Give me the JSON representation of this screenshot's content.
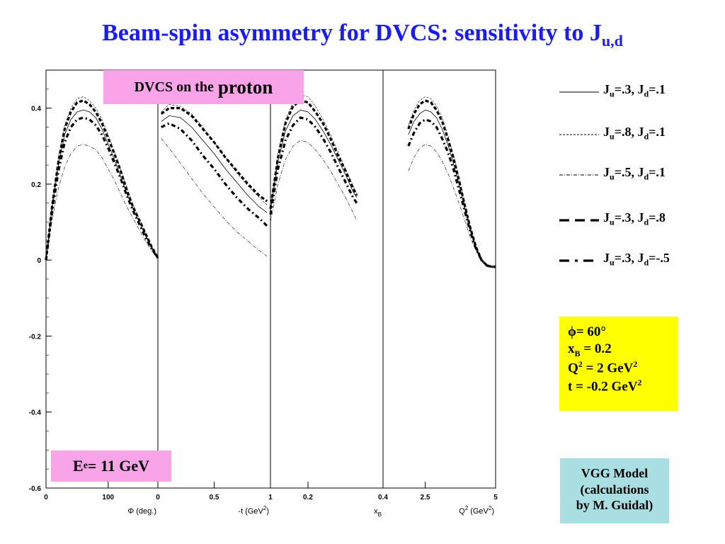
{
  "title": {
    "main": "Beam-spin asymmetry for DVCS: sensitivity to J",
    "sub": "u,d"
  },
  "labels": {
    "proton_a": "DVCS on the",
    "proton_b": "proton",
    "energy_a": "E",
    "energy_sub": "e",
    "energy_b": " = 11 GeV",
    "kin_phi": "= 60°",
    "kin_phi_symbol": "ϕ",
    "kin_xb_a": "x",
    "kin_xb_sub": "B",
    "kin_xb_b": " = 0.2",
    "kin_q2_a": "Q",
    "kin_q2_sup": "2",
    "kin_q2_b": " = 2 GeV",
    "kin_q2_sup2": "2",
    "kin_t_a": "t = -0.2 GeV",
    "kin_t_sup": "2",
    "vgg_1": "VGG Model",
    "vgg_2": "(calculations",
    "vgg_3": "by M. Guidal)"
  },
  "chart_data": {
    "type": "line",
    "ylim": [
      -0.6,
      0.5
    ],
    "yticks": [
      "0.4",
      "0.2",
      "0",
      "-0.2",
      "-0.4",
      "-0.6"
    ],
    "yticks_values": [
      0.4,
      0.2,
      0,
      -0.2,
      -0.4,
      -0.6
    ],
    "legend": [
      {
        "style": "solid",
        "ju": ".3",
        "jd": ".1"
      },
      {
        "style": "dashed",
        "ju": ".8",
        "jd": ".1"
      },
      {
        "style": "dashdot",
        "ju": ".5",
        "jd": ".1"
      },
      {
        "style": "thickdash",
        "ju": ".3",
        "jd": ".8"
      },
      {
        "style": "thickdashdot",
        "ju": ".3",
        "jd": "-.5"
      }
    ],
    "panels": [
      {
        "xlabel": "Φ (deg.)",
        "xlim": [
          0,
          180
        ],
        "xticks": [
          {
            "v": 0,
            "t": "0"
          },
          {
            "v": 100,
            "t": "100"
          }
        ],
        "x": [
          0,
          10,
          20,
          30,
          40,
          50,
          60,
          70,
          80,
          90,
          100,
          110,
          120,
          130,
          140,
          150,
          160,
          170,
          180
        ],
        "series": [
          [
            0,
            0.14,
            0.25,
            0.33,
            0.37,
            0.39,
            0.395,
            0.39,
            0.375,
            0.345,
            0.305,
            0.265,
            0.22,
            0.175,
            0.135,
            0.1,
            0.065,
            0.035,
            0.005
          ],
          [
            0,
            0.15,
            0.27,
            0.355,
            0.4,
            0.425,
            0.43,
            0.42,
            0.4,
            0.37,
            0.33,
            0.285,
            0.24,
            0.19,
            0.145,
            0.11,
            0.07,
            0.035,
            0.005
          ],
          [
            0,
            0.11,
            0.19,
            0.245,
            0.28,
            0.3,
            0.305,
            0.3,
            0.29,
            0.27,
            0.24,
            0.21,
            0.175,
            0.14,
            0.11,
            0.08,
            0.05,
            0.025,
            0.005
          ],
          [
            0,
            0.145,
            0.26,
            0.345,
            0.39,
            0.415,
            0.42,
            0.41,
            0.39,
            0.36,
            0.32,
            0.28,
            0.235,
            0.185,
            0.14,
            0.105,
            0.07,
            0.035,
            0.005
          ],
          [
            0,
            0.13,
            0.235,
            0.31,
            0.35,
            0.37,
            0.375,
            0.37,
            0.355,
            0.33,
            0.295,
            0.255,
            0.215,
            0.17,
            0.13,
            0.095,
            0.06,
            0.03,
            0.005
          ]
        ]
      },
      {
        "xlabel": "-t (GeV",
        "xlabel_sup": "2",
        "xlabel_end": ")",
        "xlim": [
          0,
          1
        ],
        "xticks": [
          {
            "v": 0,
            "t": "0"
          },
          {
            "v": 0.5,
            "t": "0.5"
          },
          {
            "v": 1,
            "t": "1"
          }
        ],
        "x": [
          0.03,
          0.1,
          0.2,
          0.3,
          0.4,
          0.5,
          0.6,
          0.7,
          0.8,
          0.9,
          0.97
        ],
        "series": [
          [
            0.365,
            0.38,
            0.375,
            0.35,
            0.315,
            0.28,
            0.24,
            0.205,
            0.17,
            0.14,
            0.125
          ],
          [
            0.39,
            0.41,
            0.405,
            0.385,
            0.35,
            0.31,
            0.27,
            0.23,
            0.195,
            0.165,
            0.145
          ],
          [
            0.32,
            0.295,
            0.255,
            0.215,
            0.175,
            0.14,
            0.105,
            0.075,
            0.05,
            0.025,
            0.01
          ],
          [
            0.385,
            0.4,
            0.4,
            0.38,
            0.345,
            0.31,
            0.27,
            0.235,
            0.2,
            0.17,
            0.155
          ],
          [
            0.35,
            0.36,
            0.345,
            0.315,
            0.275,
            0.24,
            0.2,
            0.165,
            0.135,
            0.11,
            0.09
          ]
        ]
      },
      {
        "xlabel": "x",
        "xlabel_sub": "B",
        "xlim": [
          0.1,
          0.4
        ],
        "xticks": [
          {
            "v": 0.2,
            "t": "0.2"
          },
          {
            "v": 0.4,
            "t": "0.4"
          }
        ],
        "x": [
          0.1,
          0.12,
          0.14,
          0.16,
          0.18,
          0.2,
          0.22,
          0.24,
          0.26,
          0.28,
          0.3,
          0.32,
          0.33
        ],
        "series": [
          [
            0.13,
            0.26,
            0.34,
            0.38,
            0.395,
            0.39,
            0.37,
            0.34,
            0.305,
            0.265,
            0.225,
            0.18,
            0.165
          ],
          [
            0.14,
            0.28,
            0.37,
            0.415,
            0.435,
            0.43,
            0.405,
            0.37,
            0.33,
            0.285,
            0.24,
            0.195,
            0.175
          ],
          [
            0.1,
            0.2,
            0.265,
            0.3,
            0.315,
            0.31,
            0.29,
            0.265,
            0.235,
            0.2,
            0.165,
            0.125,
            0.105
          ],
          [
            0.135,
            0.27,
            0.36,
            0.405,
            0.42,
            0.415,
            0.39,
            0.36,
            0.32,
            0.275,
            0.235,
            0.19,
            0.17
          ],
          [
            0.12,
            0.24,
            0.315,
            0.355,
            0.375,
            0.37,
            0.35,
            0.32,
            0.285,
            0.245,
            0.205,
            0.165,
            0.15
          ]
        ]
      },
      {
        "xlabel": "Q",
        "xlabel_sup": "2",
        "xlabel_end": " (GeV",
        "xlabel_sup2": "2",
        "xlabel_end2": ")",
        "xlim": [
          1,
          5
        ],
        "xticks": [
          {
            "v": 2.5,
            "t": "2.5"
          },
          {
            "v": 5,
            "t": "5"
          }
        ],
        "x": [
          1.9,
          2.1,
          2.3,
          2.5,
          2.7,
          2.9,
          3.1,
          3.3,
          3.5,
          3.7,
          3.9,
          4.1,
          4.3,
          4.5,
          4.7,
          4.9,
          5.0
        ],
        "series": [
          [
            0.33,
            0.365,
            0.385,
            0.395,
            0.39,
            0.375,
            0.345,
            0.305,
            0.255,
            0.2,
            0.14,
            0.08,
            0.03,
            0.0,
            -0.015,
            -0.018,
            -0.018
          ],
          [
            0.355,
            0.395,
            0.42,
            0.43,
            0.425,
            0.405,
            0.375,
            0.33,
            0.275,
            0.215,
            0.15,
            0.09,
            0.035,
            0.0,
            -0.015,
            -0.018,
            -0.018
          ],
          [
            0.235,
            0.27,
            0.295,
            0.305,
            0.3,
            0.285,
            0.26,
            0.23,
            0.19,
            0.15,
            0.105,
            0.06,
            0.025,
            0.0,
            -0.012,
            -0.015,
            -0.015
          ],
          [
            0.345,
            0.385,
            0.41,
            0.42,
            0.415,
            0.395,
            0.365,
            0.32,
            0.27,
            0.21,
            0.145,
            0.085,
            0.035,
            0.0,
            -0.015,
            -0.018,
            -0.018
          ],
          [
            0.3,
            0.335,
            0.36,
            0.37,
            0.365,
            0.35,
            0.32,
            0.285,
            0.24,
            0.185,
            0.13,
            0.075,
            0.03,
            0.0,
            -0.015,
            -0.018,
            -0.018
          ]
        ]
      }
    ]
  }
}
